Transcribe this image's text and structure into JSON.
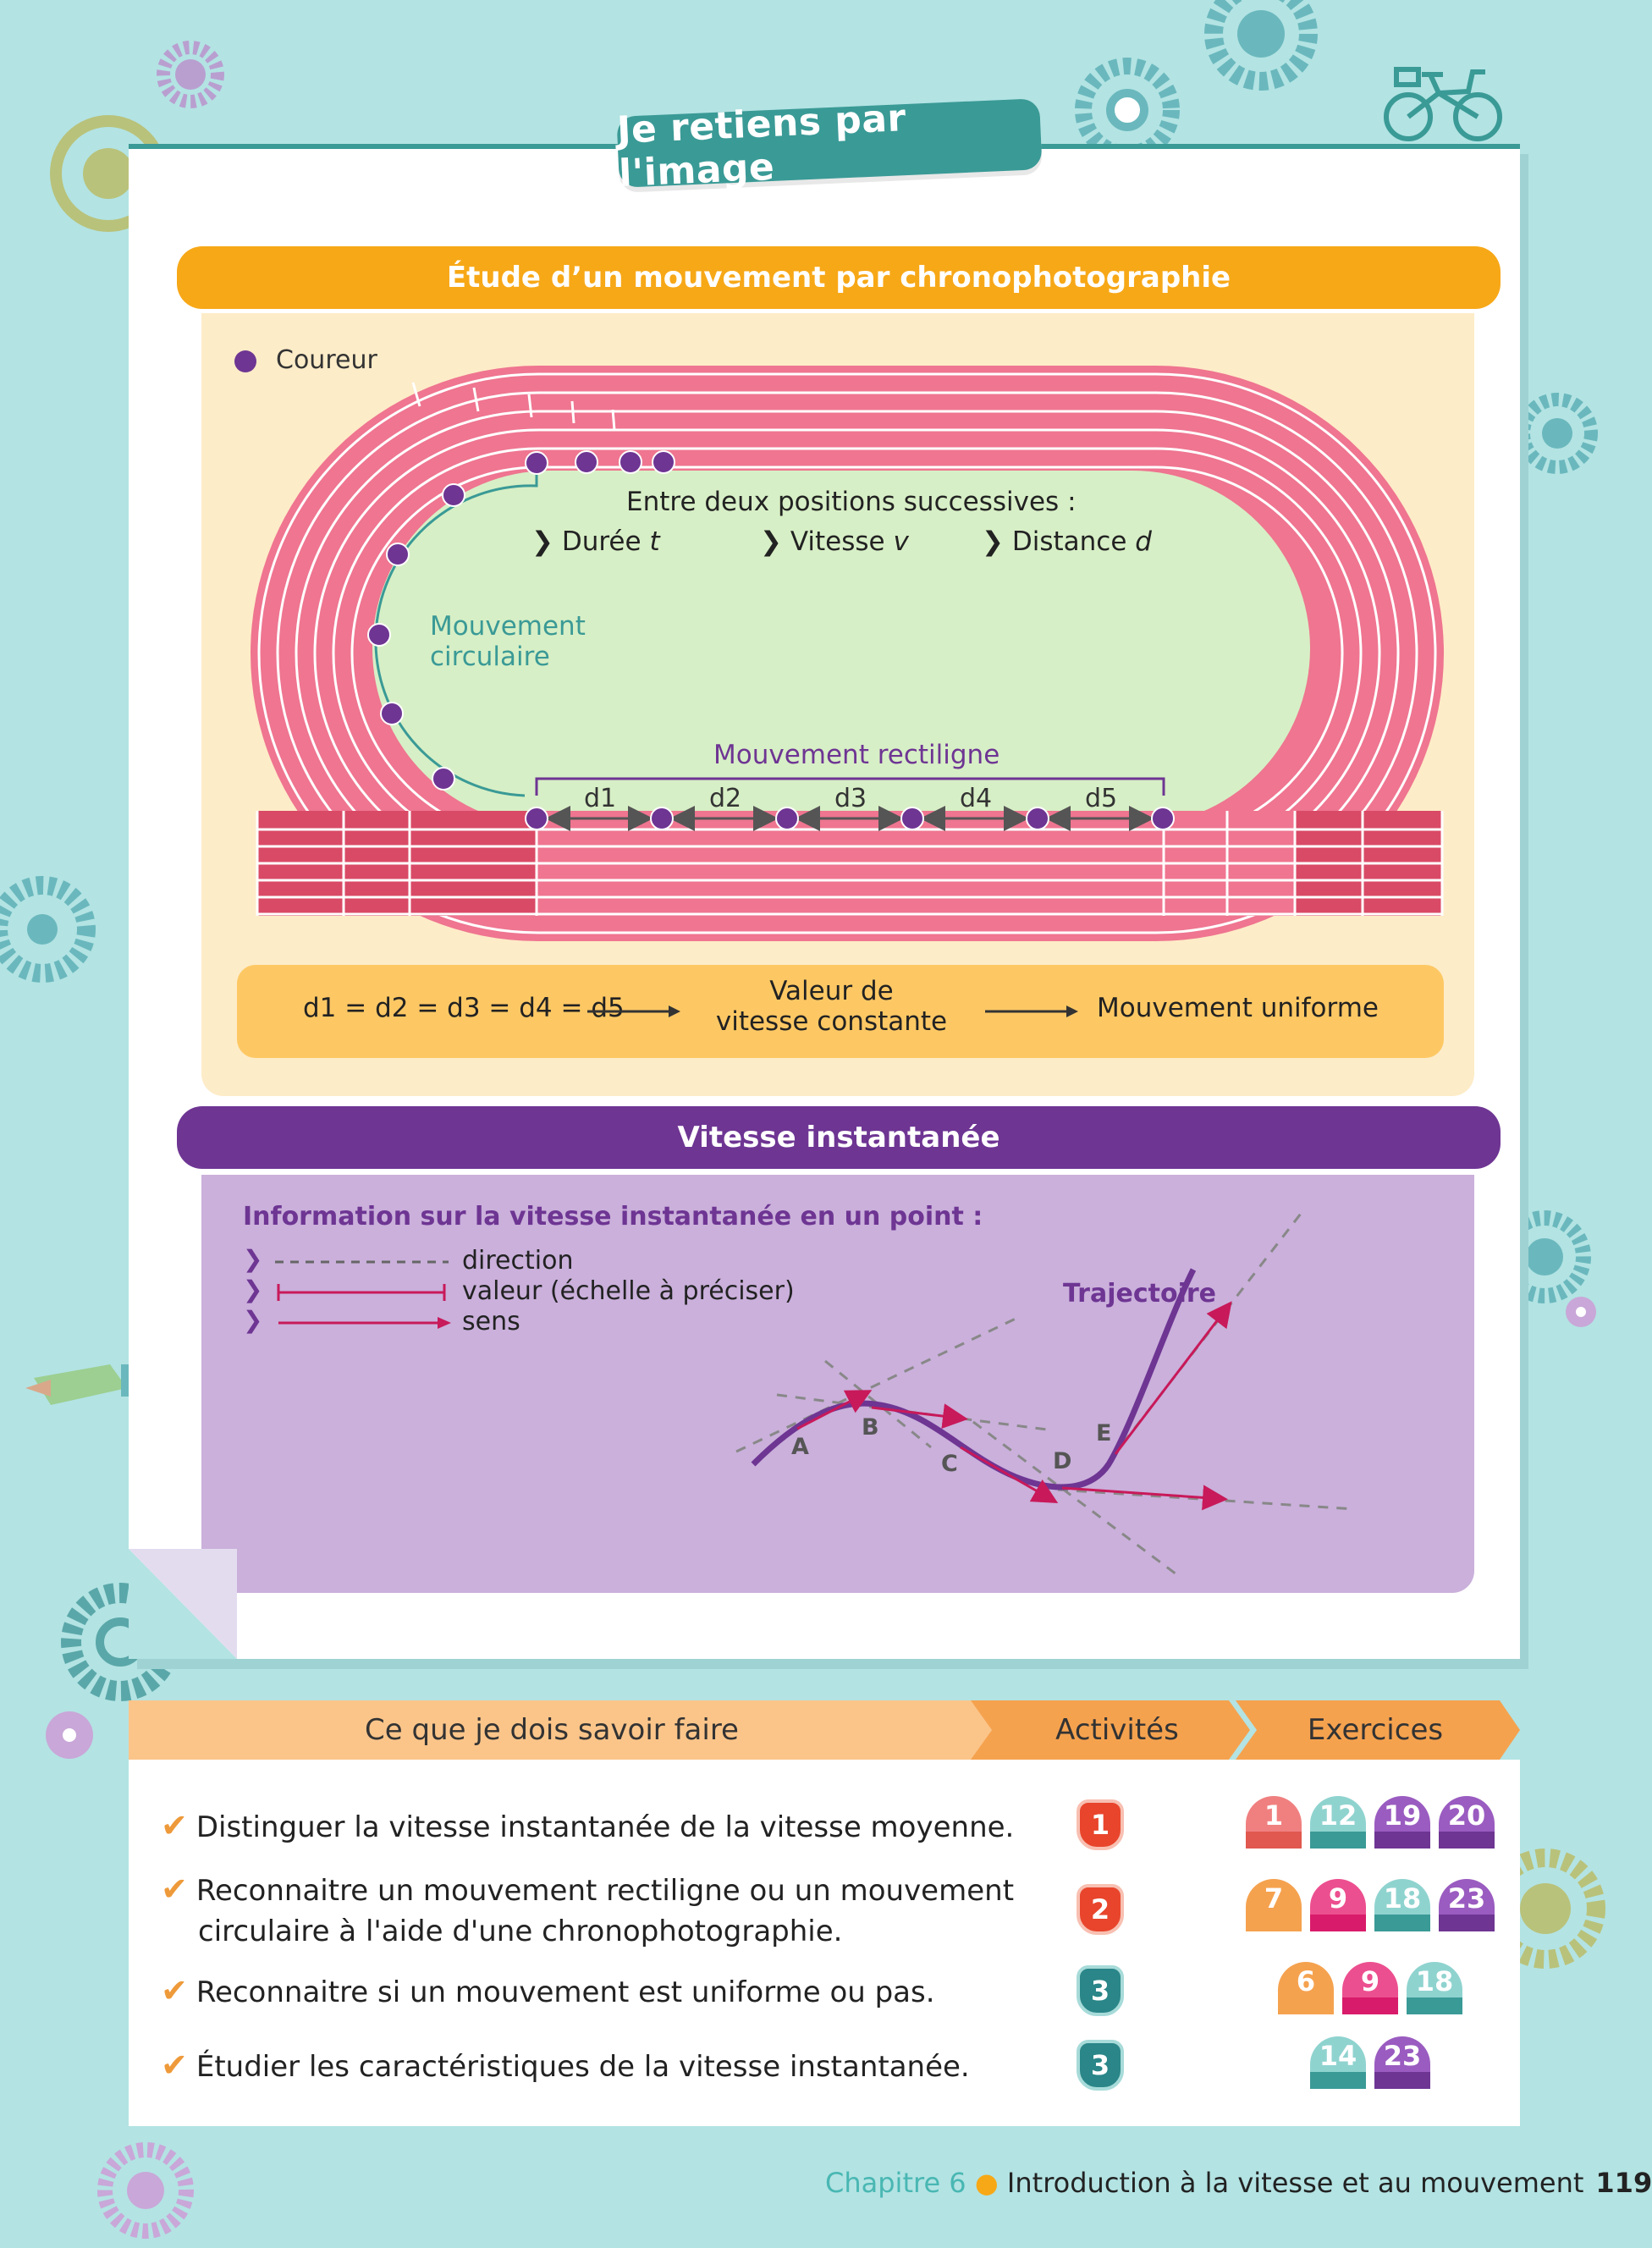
{
  "page_title": "Je retiens par l'image",
  "chrono": {
    "header": "Étude d’un mouvement par chronophotographie",
    "legend_label": "Coureur",
    "info_title": "Entre deux positions successives :",
    "info_items": [
      {
        "label": "Durée",
        "var": "t"
      },
      {
        "label": "Vitesse",
        "var": "v"
      },
      {
        "label": "Distance",
        "var": "d"
      }
    ],
    "circular_label_line1": "Mouvement",
    "circular_label_line2": "circulaire",
    "rectilinear_label": "Mouvement rectiligne",
    "distances": [
      "d1",
      "d2",
      "d3",
      "d4",
      "d5"
    ],
    "formula": "d1 = d2 = d3 = d4 = d5",
    "constant_line1": "Valeur de",
    "constant_line2": "vitesse constante",
    "conclusion": "Mouvement uniforme",
    "colors": {
      "track": "#ef7590",
      "field": "#d7efc6",
      "runner": "#6e3593",
      "accent": "#f7a817",
      "teal": "#3a9a96"
    }
  },
  "vitesse": {
    "header": "Vitesse instantanée",
    "info_title": "Information sur la vitesse instantanée en un point :",
    "legend": [
      {
        "style": "dashed",
        "text": "direction"
      },
      {
        "style": "bar",
        "text": "valeur (échelle à préciser)"
      },
      {
        "style": "arrow",
        "text": "sens"
      }
    ],
    "trajectory_label": "Trajectoire",
    "points": [
      "A",
      "B",
      "C",
      "D",
      "E"
    ]
  },
  "skills": {
    "head_main": "Ce que je dois savoir faire",
    "head_activities": "Activités",
    "head_exercises": "Exercices",
    "rows": [
      {
        "text_line1": "Distinguer la vitesse instantanée de la vitesse moyenne.",
        "text_line2": "",
        "activity": "1",
        "exercises": [
          "1",
          "12",
          "19",
          "20"
        ]
      },
      {
        "text_line1": "Reconnaitre un mouvement rectiligne ou un mouvement",
        "text_line2": "circulaire à l'aide d'une chronophotographie.",
        "activity": "2",
        "exercises": [
          "7",
          "9",
          "18",
          "23"
        ]
      },
      {
        "text_line1": "Reconnaitre si un mouvement est uniforme ou pas.",
        "text_line2": "",
        "activity": "3",
        "exercises": [
          "6",
          "9",
          "18"
        ]
      },
      {
        "text_line1": "Étudier les caractéristiques de la vitesse instantanée.",
        "text_line2": "",
        "activity": "3",
        "exercises": [
          "14",
          "23"
        ]
      }
    ]
  },
  "footer": {
    "chapter": "Chapitre 6",
    "separator": "●",
    "title": "Introduction à la vitesse et au mouvement",
    "page_number": "119"
  }
}
